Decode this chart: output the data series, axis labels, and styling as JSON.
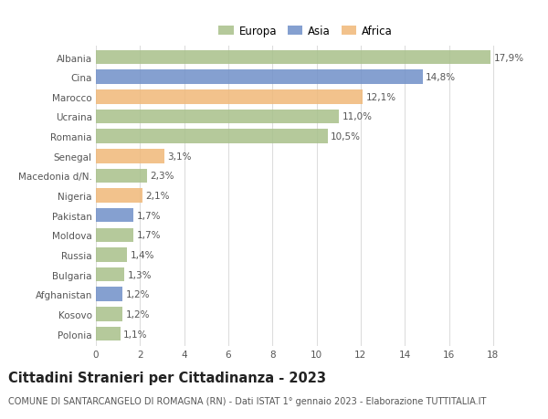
{
  "countries": [
    "Albania",
    "Cina",
    "Marocco",
    "Ucraina",
    "Romania",
    "Senegal",
    "Macedonia d/N.",
    "Nigeria",
    "Pakistan",
    "Moldova",
    "Russia",
    "Bulgaria",
    "Afghanistan",
    "Kosovo",
    "Polonia"
  ],
  "values": [
    17.9,
    14.8,
    12.1,
    11.0,
    10.5,
    3.1,
    2.3,
    2.1,
    1.7,
    1.7,
    1.4,
    1.3,
    1.2,
    1.2,
    1.1
  ],
  "labels": [
    "17,9%",
    "14,8%",
    "12,1%",
    "11,0%",
    "10,5%",
    "3,1%",
    "2,3%",
    "2,1%",
    "1,7%",
    "1,7%",
    "1,4%",
    "1,3%",
    "1,2%",
    "1,2%",
    "1,1%"
  ],
  "continents": [
    "Europa",
    "Asia",
    "Africa",
    "Europa",
    "Europa",
    "Africa",
    "Europa",
    "Africa",
    "Asia",
    "Europa",
    "Europa",
    "Europa",
    "Asia",
    "Europa",
    "Europa"
  ],
  "colors": {
    "Europa": "#a8c08a",
    "Asia": "#7090c8",
    "Africa": "#f0b878"
  },
  "xlim": [
    0,
    19
  ],
  "xticks": [
    0,
    2,
    4,
    6,
    8,
    10,
    12,
    14,
    16,
    18
  ],
  "title": "Cittadini Stranieri per Cittadinanza - 2023",
  "subtitle": "COMUNE DI SANTARCANGELO DI ROMAGNA (RN) - Dati ISTAT 1° gennaio 2023 - Elaborazione TUTTITALIA.IT",
  "background_color": "#ffffff",
  "grid_color": "#dddddd",
  "bar_height": 0.72,
  "title_fontsize": 10.5,
  "subtitle_fontsize": 7.0,
  "label_fontsize": 7.5,
  "tick_fontsize": 7.5,
  "legend_fontsize": 8.5
}
